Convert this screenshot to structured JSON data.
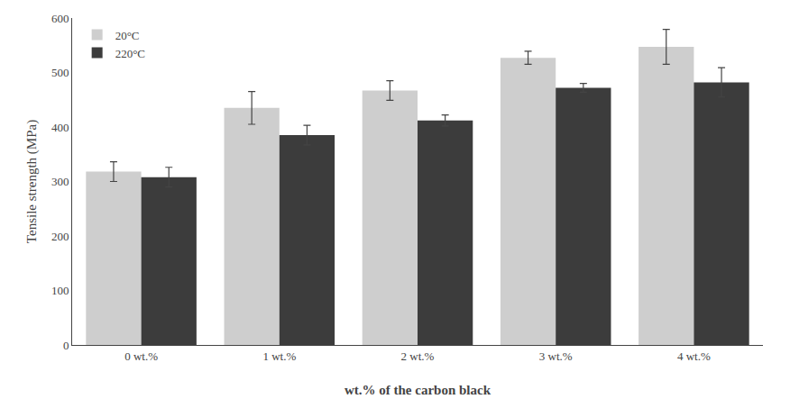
{
  "chart_data": {
    "type": "bar",
    "xlabel": "wt.% of the carbon black",
    "ylabel": "Tensile strength (MPa)",
    "categories": [
      "0 wt.%",
      "1 wt.%",
      "2 wt.%",
      "3 wt.%",
      "4 wt.%"
    ],
    "series": [
      {
        "name": "20°C",
        "color": "#cecece",
        "values": [
          318,
          435,
          467,
          527,
          547
        ],
        "errors": [
          18,
          30,
          18,
          12,
          32
        ]
      },
      {
        "name": "220°C",
        "color": "#3c3c3c",
        "values": [
          308,
          385,
          412,
          472,
          482
        ],
        "errors": [
          18,
          18,
          10,
          8,
          27
        ]
      }
    ],
    "ylim": [
      0,
      600
    ],
    "yticks": [
      0,
      100,
      200,
      300,
      400,
      500,
      600
    ],
    "grid": false,
    "legend": "upper left"
  }
}
